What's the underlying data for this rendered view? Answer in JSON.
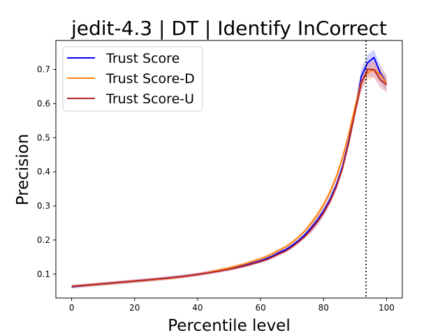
{
  "chart_data": {
    "type": "line",
    "title": "jedit-4.3 | DT | Identify InCorrect",
    "xlabel": "Percentile level",
    "ylabel": "Precision",
    "xlim": [
      -5,
      105
    ],
    "ylim": [
      0.03,
      0.785
    ],
    "xticks": [
      0,
      20,
      40,
      60,
      80,
      100
    ],
    "yticks": [
      0.1,
      0.2,
      0.3,
      0.4,
      0.5,
      0.6,
      0.7
    ],
    "legend_position": "upper-left",
    "grid": false,
    "vline": {
      "x": 93.5,
      "style": "dotted",
      "color": "#000000"
    },
    "x": [
      0,
      5,
      10,
      15,
      20,
      25,
      30,
      35,
      40,
      45,
      50,
      55,
      60,
      62,
      64,
      66,
      68,
      70,
      72,
      74,
      76,
      78,
      80,
      82,
      84,
      86,
      88,
      90,
      92,
      94,
      96,
      98,
      100
    ],
    "series": [
      {
        "name": "Trust Score",
        "color": "#0000ff",
        "band_color": "#9999ff",
        "values": [
          0.063,
          0.067,
          0.071,
          0.075,
          0.079,
          0.083,
          0.088,
          0.093,
          0.099,
          0.107,
          0.116,
          0.126,
          0.139,
          0.146,
          0.154,
          0.164,
          0.172,
          0.184,
          0.198,
          0.215,
          0.235,
          0.258,
          0.285,
          0.318,
          0.36,
          0.415,
          0.49,
          0.58,
          0.68,
          0.72,
          0.735,
          0.69,
          0.66
        ]
      },
      {
        "name": "Trust Score-D",
        "color": "#ff7f0e",
        "band_color": "#ffc48a",
        "values": [
          0.064,
          0.067,
          0.071,
          0.075,
          0.079,
          0.083,
          0.087,
          0.092,
          0.099,
          0.108,
          0.118,
          0.13,
          0.145,
          0.152,
          0.161,
          0.171,
          0.18,
          0.193,
          0.208,
          0.226,
          0.248,
          0.273,
          0.303,
          0.339,
          0.384,
          0.44,
          0.51,
          0.59,
          0.665,
          0.69,
          0.7,
          0.685,
          0.66
        ]
      },
      {
        "name": "Trust Score-U",
        "color": "#b22222",
        "band_color": "#d88ab8",
        "values": [
          0.064,
          0.068,
          0.072,
          0.076,
          0.08,
          0.084,
          0.088,
          0.093,
          0.099,
          0.106,
          0.114,
          0.124,
          0.137,
          0.143,
          0.151,
          0.16,
          0.168,
          0.18,
          0.194,
          0.21,
          0.23,
          0.253,
          0.28,
          0.313,
          0.355,
          0.41,
          0.485,
          0.575,
          0.66,
          0.7,
          0.7,
          0.67,
          0.655
        ]
      }
    ]
  }
}
